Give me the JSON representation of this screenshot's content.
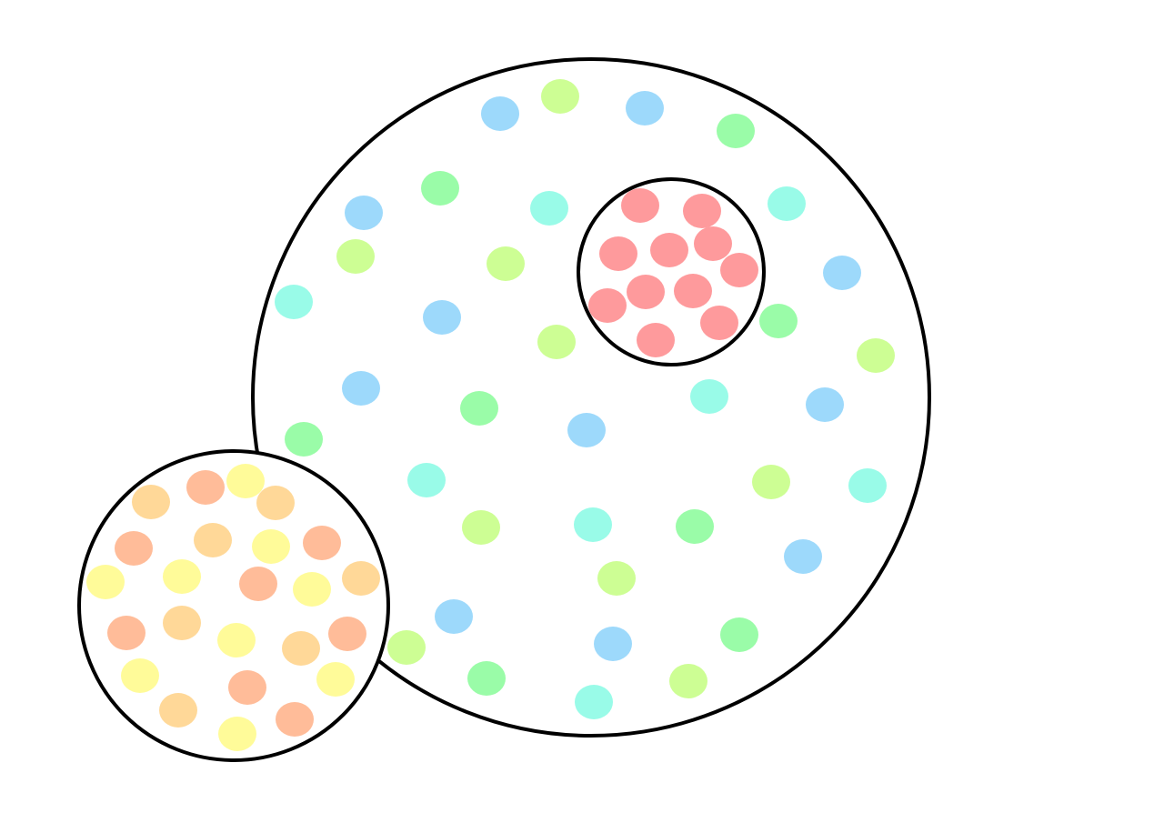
{
  "diagram": {
    "outline_color": "#000000",
    "background": "#ffffff",
    "dot_colors": {
      "blue": "#9dd9fb",
      "lime": "#cdfe94",
      "green": "#9afca8",
      "cyan": "#99fbe8",
      "red": "#fe9a9c",
      "orange": "#ffbc99",
      "light_orange": "#ffd898",
      "yellow": "#fffb99"
    }
  }
}
